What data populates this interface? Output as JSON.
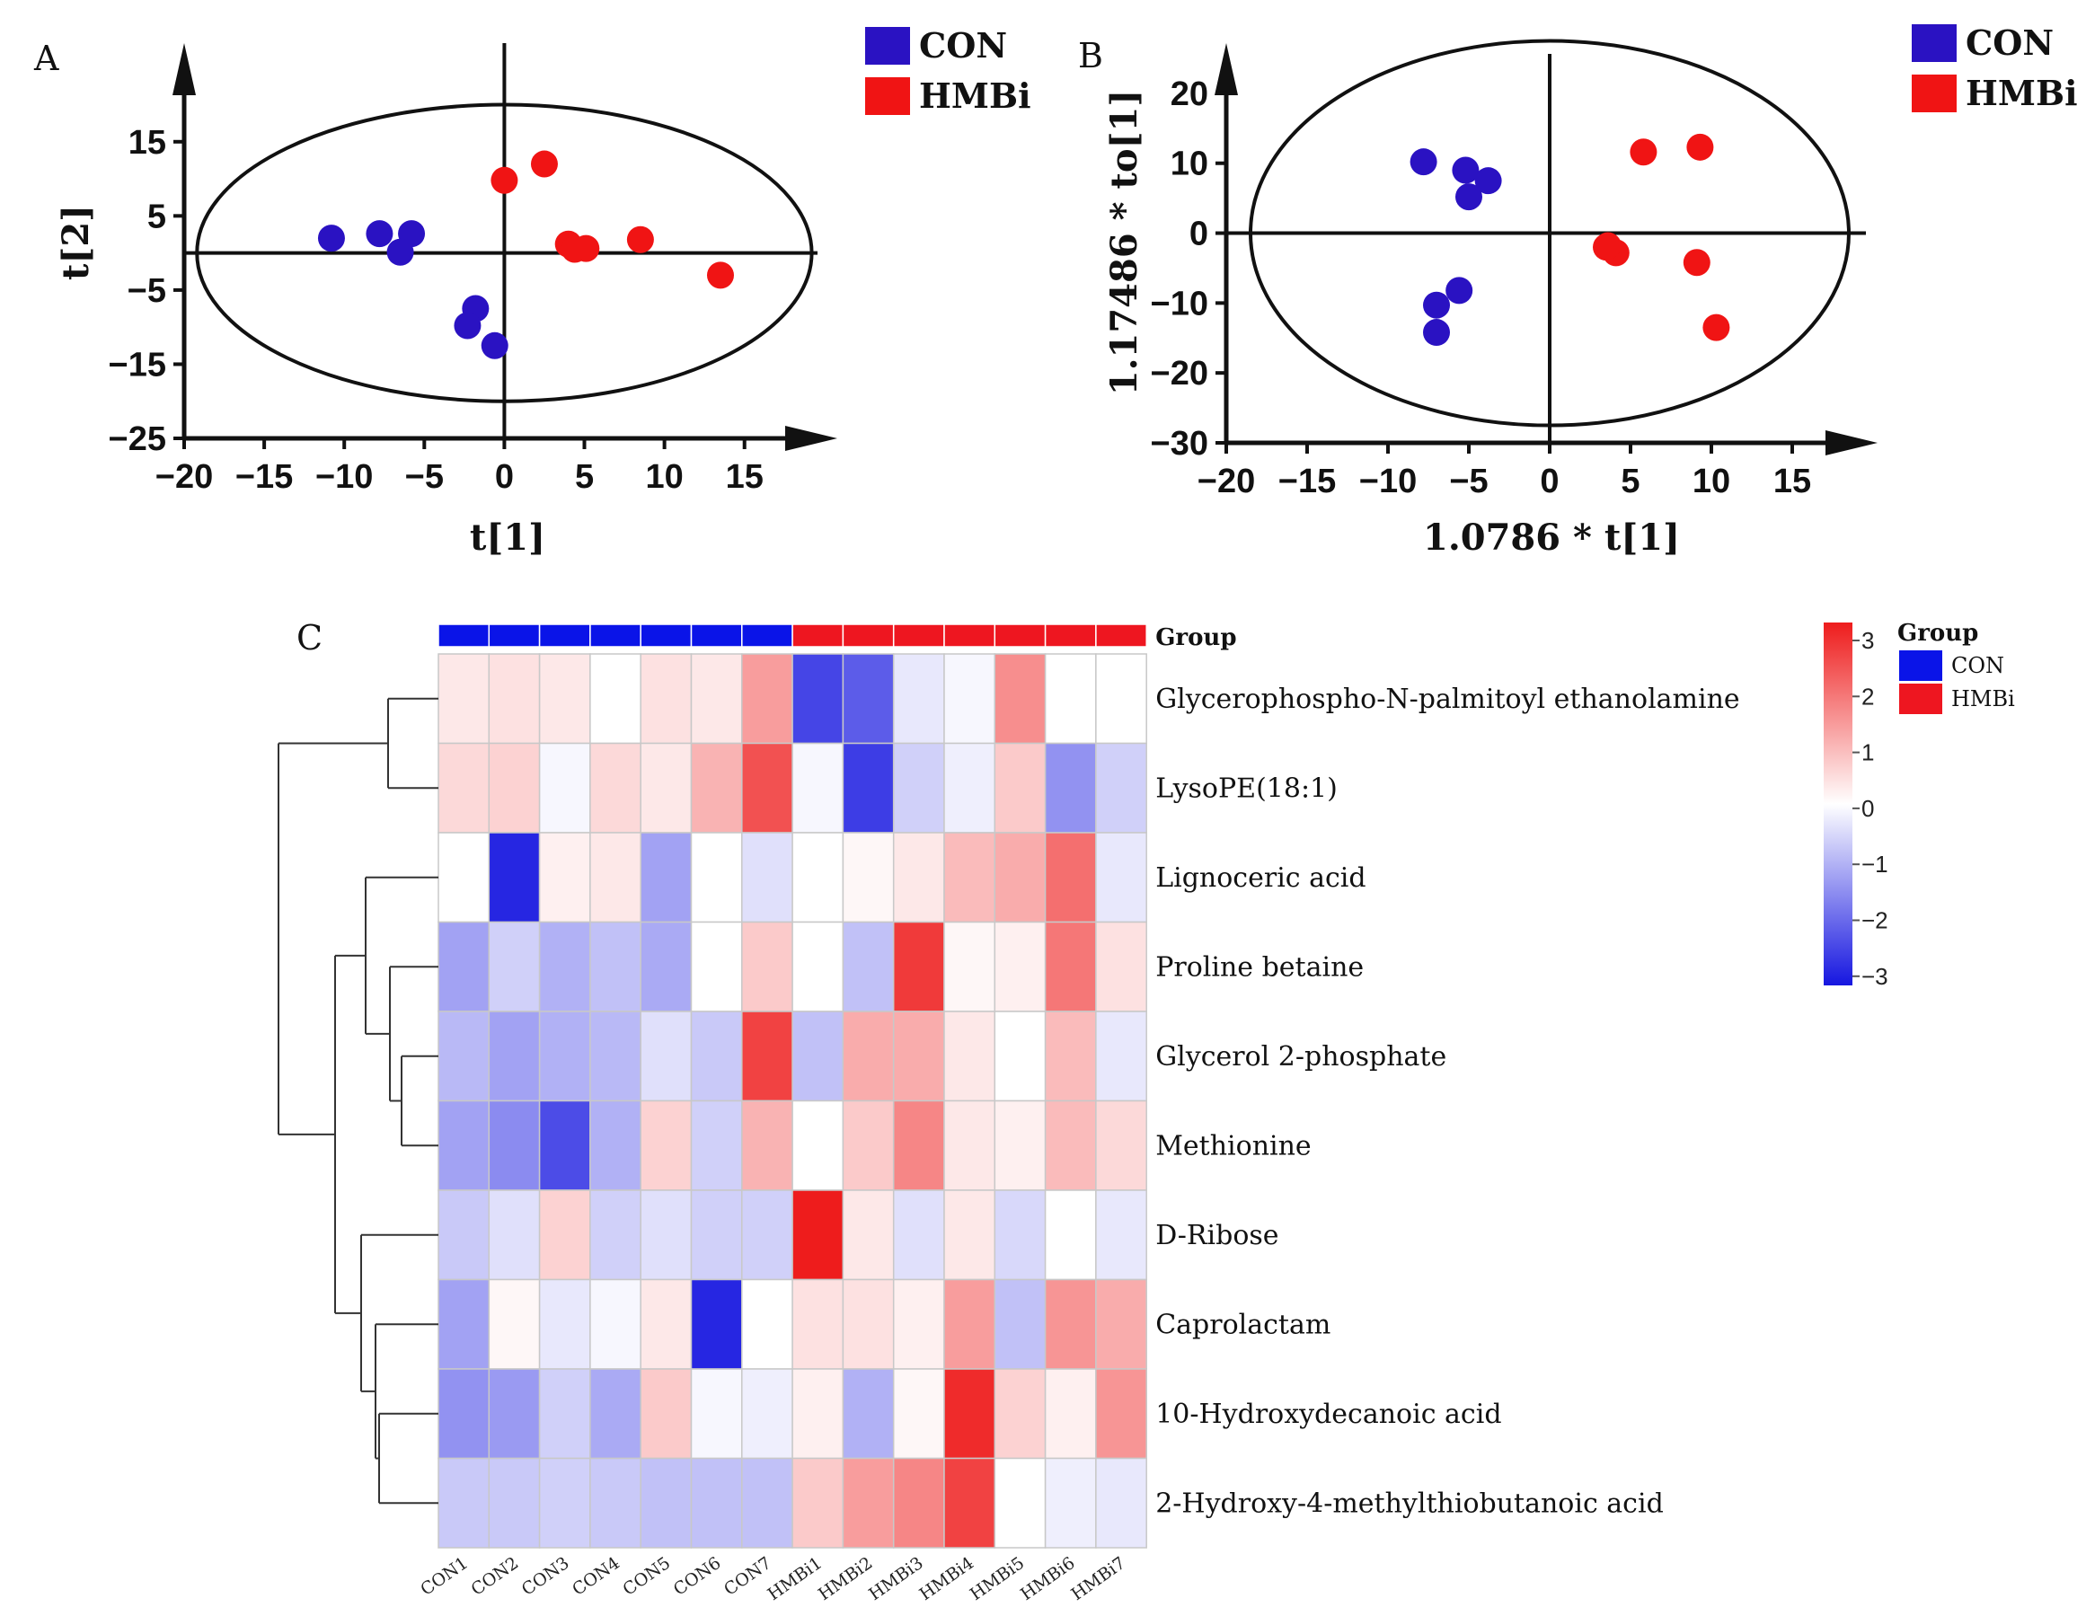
{
  "chart_data": [
    {
      "type": "scatter",
      "panel": "A",
      "xlabel": "t[1]",
      "ylabel": "t[2]",
      "xlim": [
        -20,
        19
      ],
      "ylim": [
        -25,
        22
      ],
      "xticks": [
        -20,
        -15,
        -10,
        -5,
        0,
        5,
        10,
        15
      ],
      "xtick_labels": [
        "−20",
        "−15",
        "−10",
        "−5",
        "0",
        "5",
        "10",
        "15"
      ],
      "yticks": [
        15,
        5,
        -5,
        -15,
        -25
      ],
      "ytick_labels": [
        "15",
        "5",
        "−5",
        "−15",
        "−25"
      ],
      "ellipse": {
        "center": [
          0,
          0
        ],
        "rx": 19.2,
        "ry": 20
      },
      "legend": [
        {
          "name": "CON",
          "color": "#2a12c2"
        },
        {
          "name": "HMBi",
          "color": "#f01414"
        }
      ],
      "series": [
        {
          "name": "CON",
          "color": "#2a12c2",
          "points": [
            [
              -10.8,
              2
            ],
            [
              -7.8,
              2.6
            ],
            [
              -5.8,
              2.6
            ],
            [
              -6.5,
              0.1
            ],
            [
              -1.8,
              -7.5
            ],
            [
              -2.3,
              -9.8
            ],
            [
              -0.6,
              -12.5
            ]
          ]
        },
        {
          "name": "HMBi",
          "color": "#f01414",
          "points": [
            [
              0,
              9.8
            ],
            [
              2.5,
              12
            ],
            [
              4,
              1.2
            ],
            [
              4.4,
              0.5
            ],
            [
              5.1,
              0.6
            ],
            [
              8.5,
              1.8
            ],
            [
              13.5,
              -3
            ]
          ]
        }
      ]
    },
    {
      "type": "scatter",
      "panel": "B",
      "xlabel": "1.0786 * t[1]",
      "ylabel": "1.17486 * to[1]",
      "xlim": [
        -20,
        19
      ],
      "ylim": [
        -30,
        25
      ],
      "xticks": [
        -20,
        -15,
        -10,
        -5,
        0,
        5,
        10,
        15
      ],
      "xtick_labels": [
        "−20",
        "−15",
        "−10",
        "−5",
        "0",
        "5",
        "10",
        "15"
      ],
      "yticks": [
        20,
        10,
        0,
        -10,
        -20,
        -30
      ],
      "ytick_labels": [
        "20",
        "10",
        "0",
        "−10",
        "−20",
        "−30"
      ],
      "ellipse": {
        "center": [
          0,
          0
        ],
        "rx": 18.5,
        "ry": 27.5
      },
      "legend": [
        {
          "name": "CON",
          "color": "#2a12c2"
        },
        {
          "name": "HMBi",
          "color": "#f01414"
        }
      ],
      "series": [
        {
          "name": "CON",
          "color": "#2a12c2",
          "points": [
            [
              -7.8,
              10.2
            ],
            [
              -5.2,
              9
            ],
            [
              -3.8,
              7.5
            ],
            [
              -5,
              5.2
            ],
            [
              -5.6,
              -8.2
            ],
            [
              -7,
              -10.3
            ],
            [
              -7,
              -14.2
            ]
          ]
        },
        {
          "name": "HMBi",
          "color": "#f01414",
          "points": [
            [
              5.8,
              11.6
            ],
            [
              9.3,
              12.3
            ],
            [
              3.5,
              -2
            ],
            [
              4.1,
              -2.8
            ],
            [
              9.1,
              -4.2
            ],
            [
              10.3,
              -13.5
            ],
            [
              3.6,
              -1.8
            ]
          ]
        }
      ]
    },
    {
      "type": "heatmap",
      "panel": "C",
      "columns": [
        "CON1",
        "CON2",
        "CON3",
        "CON4",
        "CON5",
        "CON6",
        "CON7",
        "HMBi1",
        "HMBi2",
        "HMBi3",
        "HMBi4",
        "HMBi5",
        "HMBi6",
        "HMBi7"
      ],
      "column_groups": [
        "CON",
        "CON",
        "CON",
        "CON",
        "CON",
        "CON",
        "CON",
        "HMBi",
        "HMBi",
        "HMBi",
        "HMBi",
        "HMBi",
        "HMBi",
        "HMBi"
      ],
      "rows": [
        "Glycerophospho-N-palmitoyl ethanolamine",
        "LysoPE(18:1)",
        "Lignoceric acid",
        "Proline betaine",
        "Glycerol 2-phosphate",
        "Methionine",
        "D-Ribose",
        "Caprolactam",
        "10-Hydroxydecanoic acid",
        "2-Hydroxy-4-methylthiobutanoic acid"
      ],
      "values": [
        [
          0.3,
          0.4,
          0.3,
          0.0,
          0.4,
          0.3,
          1.3,
          -2.4,
          -2.1,
          -0.3,
          -0.1,
          1.5,
          0.0,
          0.0
        ],
        [
          0.5,
          0.6,
          -0.1,
          0.5,
          0.3,
          1.0,
          2.3,
          -0.1,
          -2.5,
          -0.6,
          -0.2,
          0.7,
          -1.4,
          -0.6
        ],
        [
          0.0,
          -2.8,
          0.2,
          0.3,
          -1.2,
          0.0,
          -0.4,
          0.0,
          0.1,
          0.3,
          0.9,
          1.1,
          1.9,
          -0.3
        ],
        [
          -1.2,
          -0.6,
          -1.0,
          -0.8,
          -1.1,
          0.0,
          0.7,
          0.0,
          -0.8,
          2.6,
          0.1,
          0.2,
          1.8,
          0.4
        ],
        [
          -0.9,
          -1.2,
          -1.0,
          -0.9,
          -0.4,
          -0.7,
          2.5,
          -0.8,
          1.1,
          1.1,
          0.3,
          0.0,
          0.9,
          -0.3
        ],
        [
          -1.2,
          -1.5,
          -2.3,
          -1.0,
          0.6,
          -0.6,
          1.0,
          0.0,
          0.7,
          1.6,
          0.3,
          0.2,
          0.9,
          0.5
        ],
        [
          -0.7,
          -0.4,
          0.6,
          -0.6,
          -0.4,
          -0.6,
          -0.6,
          3.2,
          0.3,
          -0.4,
          0.3,
          -0.5,
          0.0,
          -0.3
        ],
        [
          -1.2,
          0.1,
          -0.3,
          -0.1,
          0.3,
          -2.8,
          0.0,
          0.4,
          0.4,
          0.2,
          1.3,
          -0.8,
          1.4,
          1.1
        ],
        [
          -1.4,
          -1.3,
          -0.6,
          -1.1,
          0.7,
          -0.1,
          -0.2,
          0.2,
          -1.0,
          0.1,
          2.8,
          0.6,
          0.2,
          1.4
        ],
        [
          -0.7,
          -0.7,
          -0.6,
          -0.7,
          -0.8,
          -0.8,
          -0.8,
          0.7,
          1.3,
          1.6,
          2.5,
          0.0,
          -0.2,
          -0.3
        ]
      ],
      "color_scale": {
        "min": -3,
        "max": 3,
        "ticks": [
          "3",
          "2",
          "1",
          "0",
          "−1",
          "−2",
          "−3"
        ],
        "low": "#1616e0",
        "mid": "#ffffff",
        "high": "#ee1c1c"
      },
      "annotation_title": "Group",
      "legend_title": "Group",
      "group_legend": [
        {
          "name": "CON",
          "color": "#0a14e8"
        },
        {
          "name": "HMBi",
          "color": "#ee1620"
        }
      ]
    }
  ],
  "panel_labels": [
    "A",
    "B",
    "C"
  ]
}
